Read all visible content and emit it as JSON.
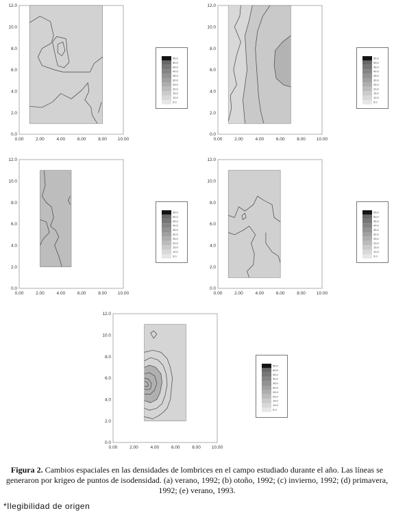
{
  "figure": {
    "caption_label": "Figura 2.",
    "caption_text": " Cambios espaciales en las densidades de lombrices en el campo estudiado durante el año. Las líneas se generaron por krigeo de puntos de isodensidad. (a) verano, 1992; (b) otoño, 1992; (c) invierno, 1992; (d) primavera, 1992; (e) verano, 1993.",
    "footnote": "*Ilegibilidad de origen"
  },
  "chart_data": [
    {
      "type": "heatmap",
      "panel": "a",
      "xlim": [
        0,
        10
      ],
      "ylim": [
        0,
        12
      ],
      "x_ticks": [
        "0.00",
        "2.00",
        "4.00",
        "6.00",
        "8.00",
        "10.00"
      ],
      "y_ticks": [
        "0.0",
        "2.0",
        "4.0",
        "6.0",
        "8.0",
        "10.0",
        "12.0"
      ],
      "field": {
        "x": [
          1,
          8
        ],
        "y": [
          1,
          12
        ]
      },
      "legend_levels": [
        "55.0",
        "50.0",
        "45.0",
        "40.0",
        "35.0",
        "30.0",
        "25.0",
        "20.0",
        "15.0",
        "10.0",
        "5.0"
      ]
    },
    {
      "type": "heatmap",
      "panel": "b",
      "xlim": [
        0,
        10
      ],
      "ylim": [
        0,
        12
      ],
      "x_ticks": [
        "0.00",
        "2.00",
        "4.00",
        "6.00",
        "8.00",
        "10.00"
      ],
      "y_ticks": [
        "0.0",
        "2.0",
        "4.0",
        "6.0",
        "8.0",
        "10.0",
        "12.0"
      ],
      "field": {
        "x": [
          1,
          7
        ],
        "y": [
          1,
          12
        ]
      },
      "legend_levels": [
        "55.0",
        "50.0",
        "45.0",
        "40.0",
        "35.0",
        "30.0",
        "25.0",
        "20.0",
        "15.0",
        "10.0",
        "5.0"
      ]
    },
    {
      "type": "heatmap",
      "panel": "c",
      "xlim": [
        0,
        10
      ],
      "ylim": [
        0,
        12
      ],
      "x_ticks": [
        "0.00",
        "2.00",
        "4.00",
        "6.00",
        "8.00",
        "10.00"
      ],
      "y_ticks": [
        "0.0",
        "2.0",
        "4.0",
        "6.0",
        "8.0",
        "10.0",
        "12.0"
      ],
      "field": {
        "x": [
          2,
          5
        ],
        "y": [
          2,
          11
        ]
      },
      "legend_levels": [
        "55.0",
        "50.0",
        "45.0",
        "40.0",
        "35.0",
        "30.0",
        "25.0",
        "20.0",
        "15.0",
        "10.0",
        "5.0"
      ]
    },
    {
      "type": "heatmap",
      "panel": "d",
      "xlim": [
        0,
        10
      ],
      "ylim": [
        0,
        12
      ],
      "x_ticks": [
        "0.00",
        "2.00",
        "4.00",
        "6.00",
        "8.00",
        "10.00"
      ],
      "y_ticks": [
        "0.0",
        "2.0",
        "4.0",
        "6.0",
        "8.0",
        "10.0",
        "12.0"
      ],
      "field": {
        "x": [
          1,
          6
        ],
        "y": [
          1,
          11
        ]
      },
      "legend_levels": [
        "55.0",
        "50.0",
        "45.0",
        "40.0",
        "35.0",
        "30.0",
        "25.0",
        "20.0",
        "15.0",
        "10.0",
        "5.0"
      ]
    },
    {
      "type": "heatmap",
      "panel": "e",
      "xlim": [
        0,
        10
      ],
      "ylim": [
        0,
        12
      ],
      "x_ticks": [
        "0.00",
        "2.00",
        "4.00",
        "6.00",
        "8.00",
        "10.00"
      ],
      "y_ticks": [
        "0.0",
        "2.0",
        "4.0",
        "6.0",
        "8.0",
        "10.0",
        "12.0"
      ],
      "field": {
        "x": [
          3,
          7
        ],
        "y": [
          2,
          11
        ]
      },
      "legend_levels": [
        "55.0",
        "50.0",
        "45.0",
        "40.0",
        "35.0",
        "30.0",
        "25.0",
        "20.0",
        "15.0",
        "10.0",
        "5.0"
      ]
    }
  ]
}
